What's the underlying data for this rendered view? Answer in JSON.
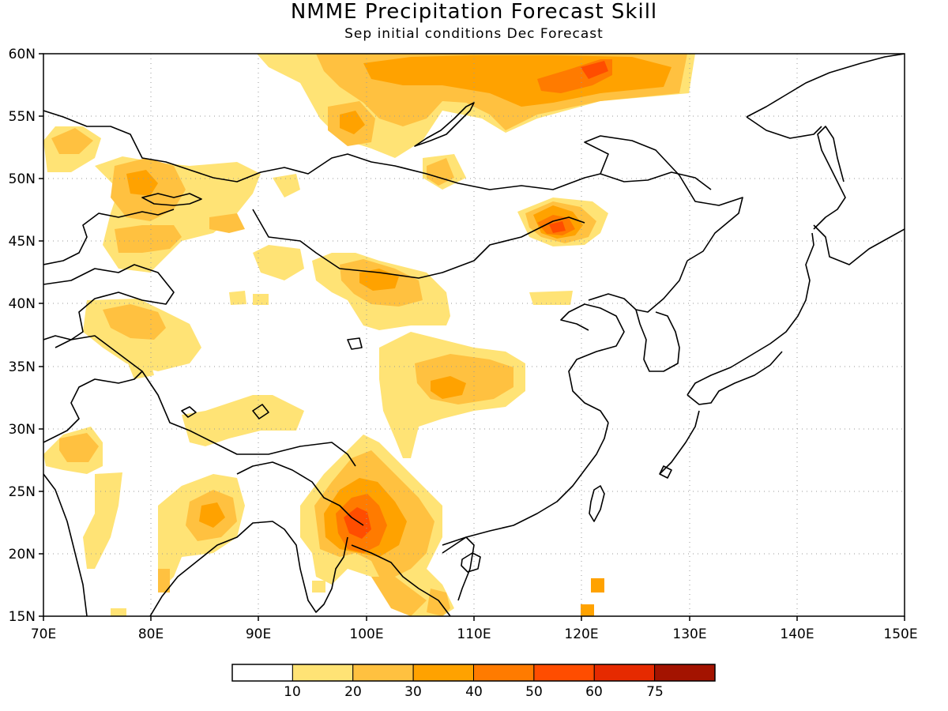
{
  "title": "NMME Precipitation Forecast Skill",
  "subtitle": "Sep initial conditions  Dec Forecast",
  "map": {
    "lon_range": [
      70,
      150
    ],
    "lat_range": [
      15,
      60
    ],
    "lon_ticks": [
      "70E",
      "80E",
      "90E",
      "100E",
      "110E",
      "120E",
      "130E",
      "140E",
      "150E"
    ],
    "lat_ticks": [
      "15N",
      "20N",
      "25N",
      "30N",
      "35N",
      "40N",
      "45N",
      "50N",
      "55N",
      "60N"
    ],
    "grid": "dotted"
  },
  "legend": {
    "labels": [
      "10",
      "20",
      "30",
      "40",
      "50",
      "60",
      "75"
    ],
    "colors": [
      "#ffffff",
      "#ffe375",
      "#ffc140",
      "#ffa200",
      "#ff7b00",
      "#ff4d00",
      "#e62a00",
      "#a31300"
    ]
  }
}
